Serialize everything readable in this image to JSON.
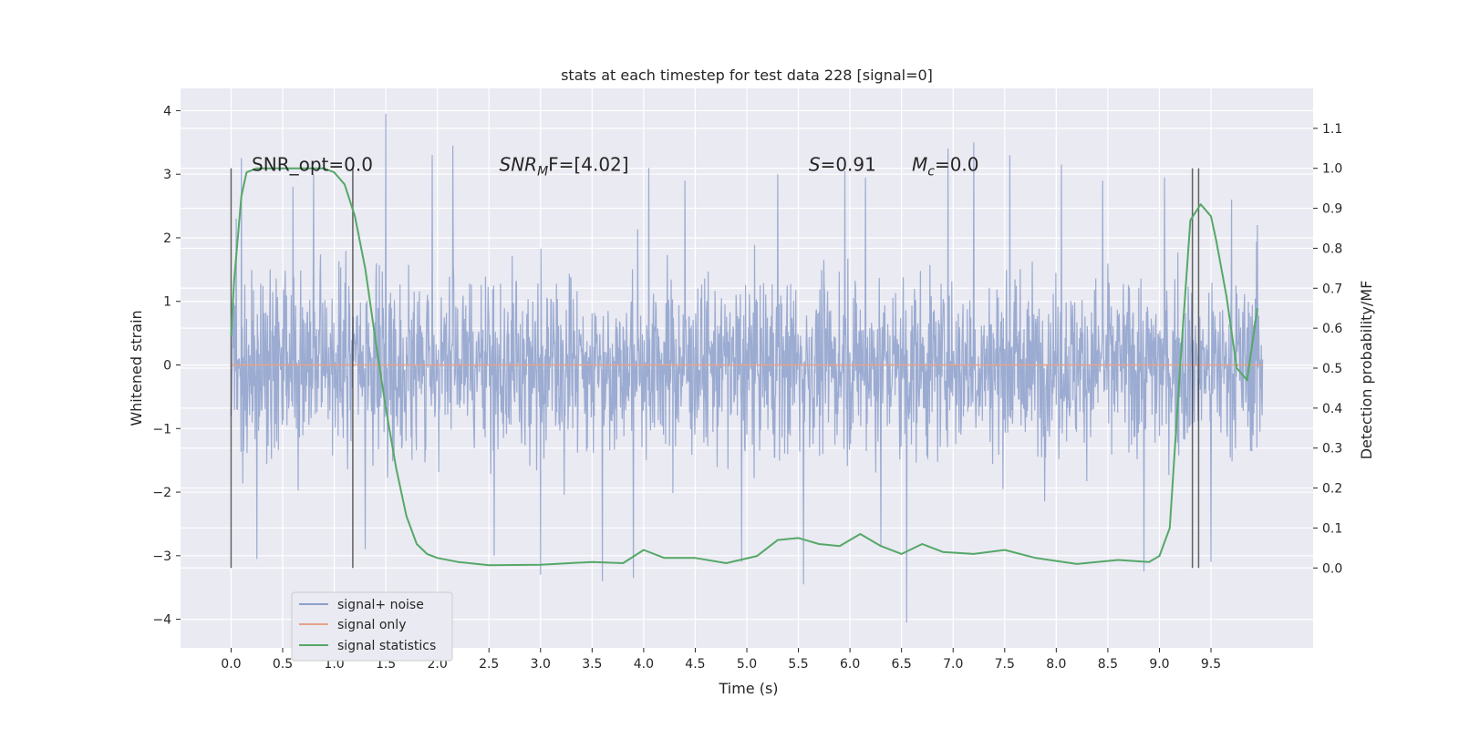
{
  "chart_data": {
    "type": "line",
    "title": "stats at each timestep for test data 228 [signal=0]",
    "xlabel": "Time (s)",
    "ylabel": "Whitened strain",
    "ylabel_right": "Detection probability/MF",
    "xlim": [
      -0.49,
      10.49
    ],
    "ylim": [
      -4.45,
      4.35
    ],
    "ylim_right": [
      -0.2,
      1.2
    ],
    "x_ticks": [
      "0.0",
      "0.5",
      "1.0",
      "1.5",
      "2.0",
      "2.5",
      "3.0",
      "3.5",
      "4.0",
      "4.5",
      "5.0",
      "5.5",
      "6.0",
      "6.5",
      "7.0",
      "7.5",
      "8.0",
      "8.5",
      "9.0",
      "9.5"
    ],
    "x_tick_values": [
      0,
      0.5,
      1,
      1.5,
      2,
      2.5,
      3,
      3.5,
      4,
      4.5,
      5,
      5.5,
      6,
      6.5,
      7,
      7.5,
      8,
      8.5,
      9,
      9.5
    ],
    "y_ticks": [
      "−4",
      "−3",
      "−2",
      "−1",
      "0",
      "1",
      "2",
      "3",
      "4"
    ],
    "y_tick_values": [
      -4,
      -3,
      -2,
      -1,
      0,
      1,
      2,
      3,
      4
    ],
    "y_ticks_right": [
      "0.0",
      "0.1",
      "0.2",
      "0.3",
      "0.4",
      "0.5",
      "0.6",
      "0.7",
      "0.8",
      "0.9",
      "1.0",
      "1.1"
    ],
    "y_tick_values_right": [
      0,
      0.1,
      0.2,
      0.3,
      0.4,
      0.5,
      0.6,
      0.7,
      0.8,
      0.9,
      1.0,
      1.1
    ],
    "grid": true,
    "legend_position": "lower-left",
    "series": [
      {
        "name": "signal+ noise",
        "color": "#8da0cb",
        "axis": "left",
        "description": "whitened noise trace, 0–10 s, mostly within ±2.3 with spikes to about ±4",
        "x_range": [
          0,
          10
        ],
        "envelope": [
          1.8,
          -1.8
        ],
        "spikes": [
          [
            0.05,
            2.3
          ],
          [
            0.1,
            3.25
          ],
          [
            0.25,
            -3.05
          ],
          [
            0.6,
            2.8
          ],
          [
            0.8,
            3.0
          ],
          [
            1.5,
            3.95
          ],
          [
            1.3,
            -2.9
          ],
          [
            1.95,
            3.3
          ],
          [
            2.15,
            3.45
          ],
          [
            2.55,
            -3.0
          ],
          [
            3.0,
            -3.3
          ],
          [
            3.6,
            -3.4
          ],
          [
            3.9,
            -3.35
          ],
          [
            4.05,
            3.1
          ],
          [
            4.4,
            2.9
          ],
          [
            4.95,
            -3.1
          ],
          [
            5.3,
            3.0
          ],
          [
            5.55,
            -3.45
          ],
          [
            5.95,
            3.05
          ],
          [
            6.15,
            2.95
          ],
          [
            6.3,
            -2.85
          ],
          [
            6.55,
            -4.05
          ],
          [
            6.95,
            3.4
          ],
          [
            7.2,
            3.5
          ],
          [
            7.55,
            3.3
          ],
          [
            8.05,
            3.15
          ],
          [
            8.45,
            2.9
          ],
          [
            8.85,
            -3.25
          ],
          [
            9.05,
            2.95
          ],
          [
            9.5,
            -3.1
          ],
          [
            9.7,
            2.6
          ],
          [
            9.95,
            2.2
          ]
        ]
      },
      {
        "name": "signal only",
        "color": "#e5a38a",
        "axis": "left",
        "x": [
          0,
          10
        ],
        "y": [
          0,
          0
        ]
      },
      {
        "name": "signal statistics",
        "color": "#55a868",
        "axis": "right",
        "x": [
          0,
          0.03,
          0.1,
          0.15,
          0.25,
          0.5,
          0.9,
          1.0,
          1.1,
          1.2,
          1.3,
          1.4,
          1.5,
          1.6,
          1.7,
          1.8,
          1.9,
          2.0,
          2.2,
          2.5,
          3.0,
          3.5,
          3.8,
          4.0,
          4.2,
          4.5,
          4.8,
          5.1,
          5.3,
          5.5,
          5.7,
          5.9,
          6.1,
          6.3,
          6.5,
          6.7,
          6.9,
          7.2,
          7.5,
          7.8,
          8.2,
          8.6,
          8.9,
          9.0,
          9.1,
          9.2,
          9.3,
          9.4,
          9.5,
          9.55,
          9.65,
          9.75,
          9.85,
          9.95
        ],
        "y": [
          0.58,
          0.72,
          0.93,
          0.99,
          1.0,
          1.0,
          1.0,
          0.99,
          0.96,
          0.88,
          0.75,
          0.57,
          0.4,
          0.25,
          0.13,
          0.06,
          0.035,
          0.025,
          0.015,
          0.007,
          0.008,
          0.015,
          0.012,
          0.045,
          0.025,
          0.025,
          0.012,
          0.03,
          0.07,
          0.075,
          0.06,
          0.055,
          0.085,
          0.055,
          0.035,
          0.06,
          0.04,
          0.035,
          0.045,
          0.025,
          0.01,
          0.02,
          0.015,
          0.03,
          0.1,
          0.5,
          0.87,
          0.91,
          0.88,
          0.82,
          0.68,
          0.5,
          0.47,
          0.65
        ]
      }
    ],
    "vertical_lines_x": [
      0.0,
      1.18,
      9.32,
      9.38
    ],
    "annotations": [
      {
        "id": "snr_opt",
        "text": "SNR_opt=0.0",
        "x": 0.2,
        "y": 3.05
      },
      {
        "id": "snr_mf",
        "main": "SNR",
        "sub": "M",
        "tail": "F=[4.02]",
        "x": 2.6,
        "y": 3.05
      },
      {
        "id": "s",
        "main": "S",
        "tail": "=0.91",
        "x": 5.6,
        "y": 3.05
      },
      {
        "id": "mc",
        "main": "M",
        "sub": "c",
        "tail": "=0.0",
        "x": 6.6,
        "y": 3.05
      }
    ]
  }
}
